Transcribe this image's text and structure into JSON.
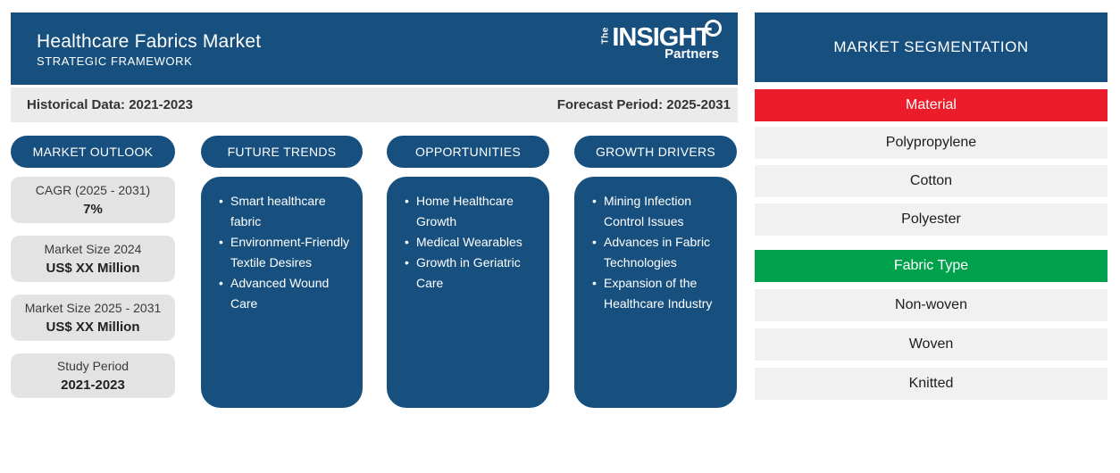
{
  "header": {
    "title": "Healthcare Fabrics Market",
    "subtitle": "STRATEGIC FRAMEWORK",
    "logo": {
      "the": "The",
      "insight": "INSIGHT",
      "partners": "Partners"
    }
  },
  "period_bar": {
    "historical": "Historical Data: 2021-2023",
    "forecast": "Forecast Period: 2025-2031"
  },
  "market_outlook": {
    "pill": "MARKET OUTLOOK",
    "cards": [
      {
        "label": "CAGR (2025 - 2031)",
        "value": "7%"
      },
      {
        "label": "Market Size 2024",
        "value": "US$ XX Million"
      },
      {
        "label": "Market Size 2025 - 2031",
        "value": "US$ XX Million"
      },
      {
        "label": "Study Period",
        "value": "2021-2023"
      }
    ]
  },
  "future_trends": {
    "pill": "FUTURE TRENDS",
    "bullets": [
      "Smart healthcare fabric",
      "Environment-Friendly Textile Desires",
      "Advanced Wound Care"
    ]
  },
  "opportunities": {
    "pill": "OPPORTUNITIES",
    "bullets": [
      "Home Healthcare Growth",
      "Medical Wearables",
      "Growth in Geriatric Care"
    ]
  },
  "growth_drivers": {
    "pill": "GROWTH DRIVERS",
    "bullets": [
      "Mining Infection Control Issues",
      "Advances in Fabric Technologies",
      "Expansion of the Healthcare Industry"
    ]
  },
  "segmentation": {
    "title": "MARKET SEGMENTATION",
    "groups": [
      {
        "name": "Material",
        "items": [
          "Polypropylene",
          "Cotton",
          "Polyester"
        ]
      },
      {
        "name": "Fabric Type",
        "items": [
          "Non-woven",
          "Woven",
          "Knitted"
        ]
      }
    ]
  },
  "colors": {
    "brand-blue": "#17507E",
    "material-red": "#ED1C2B",
    "fabric-green": "#00A14D"
  }
}
